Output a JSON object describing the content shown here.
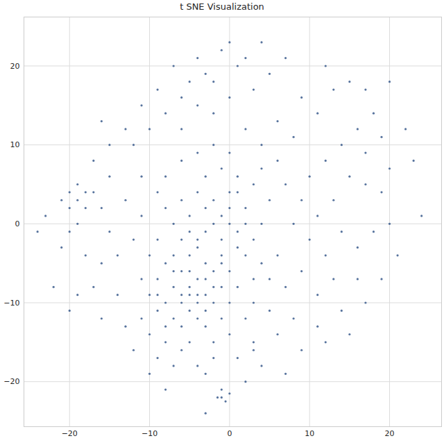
{
  "chart_data": {
    "type": "scatter",
    "title": "t SNE Visualization",
    "color": "#3a5a8c",
    "xlim": [
      -25.7,
      26.5
    ],
    "ylim": [
      -25.7,
      26.2
    ],
    "xticks": [
      -20,
      -10,
      0,
      10,
      20
    ],
    "yticks": [
      -20,
      -10,
      0,
      10,
      20
    ],
    "grid": true,
    "x": [
      -5,
      -4,
      -6,
      -3,
      -7,
      -5,
      -2,
      -4,
      -6,
      -3,
      -8,
      -1,
      -2,
      -5,
      -7,
      -9,
      -4,
      -1,
      0,
      -3,
      -6,
      -8,
      -1,
      0,
      1,
      -9,
      -10,
      -11,
      -2,
      -5,
      -3,
      -5,
      -1,
      1,
      -7,
      -9,
      -2,
      0,
      2,
      -4,
      -6,
      -8,
      3,
      2,
      4,
      1,
      -1,
      -3,
      3,
      5,
      -10,
      -11,
      -12,
      -13,
      -11,
      -8,
      -6,
      -4,
      -2,
      0,
      2,
      4,
      6,
      -2,
      0,
      -4,
      -6,
      -8,
      -10,
      -12,
      3,
      5,
      1,
      -1,
      -3,
      -5,
      7,
      9,
      11,
      8,
      13,
      15,
      17,
      18,
      16,
      14,
      12,
      10,
      17,
      19,
      20,
      19,
      17,
      15,
      13,
      11,
      9,
      7,
      6,
      8,
      10,
      12,
      14,
      16,
      18,
      20,
      21,
      19,
      16,
      13,
      11,
      9,
      7,
      6,
      5,
      8,
      11,
      14,
      17,
      15,
      12,
      9,
      6,
      3,
      1,
      4,
      7,
      2,
      -1,
      -1,
      -0.5,
      -1.5,
      0,
      -19,
      -20,
      -18,
      -19,
      -17,
      -20,
      -18,
      -21,
      -16,
      -19,
      -20,
      -21,
      -18,
      -16,
      -14,
      -15,
      -17,
      -19,
      -20,
      -16,
      -14,
      -13,
      -12,
      -9,
      -7,
      -6,
      -10,
      -8,
      -15,
      -17,
      -15,
      -13,
      -16,
      -11,
      -9,
      -6,
      -7,
      -4,
      -2,
      0,
      2,
      4,
      -23,
      -24,
      -22,
      24,
      23,
      22,
      20,
      12,
      -3,
      -4,
      3,
      0,
      -2,
      5,
      3,
      2,
      -8,
      -3,
      -5,
      -4,
      -6,
      -3,
      -4,
      -2,
      -5,
      -1,
      0,
      -2,
      -4,
      -6,
      2,
      -1,
      1,
      -7,
      -8,
      -9,
      -3,
      -7,
      0,
      -3,
      -5,
      1,
      4,
      -9,
      3,
      4,
      -10,
      -11
    ],
    "y": [
      -8,
      -9,
      -10,
      -7,
      -8,
      -11,
      -10,
      -12,
      -6,
      -5,
      -10,
      -8,
      -6,
      -4,
      -4,
      -7,
      -3,
      -4,
      -6,
      -13,
      -13,
      -13,
      -12,
      -10,
      -8,
      -11,
      -9,
      -12,
      -15,
      -15,
      -1,
      1,
      1,
      -1,
      0,
      -2,
      3,
      4,
      2,
      4,
      3,
      2,
      -2,
      -4,
      0,
      6,
      7,
      6,
      5,
      3,
      -4,
      1,
      -2,
      3,
      6,
      6,
      8,
      9,
      10,
      9,
      12,
      10,
      13,
      14,
      16,
      15,
      12,
      14,
      12,
      10,
      17,
      19,
      20,
      22,
      19,
      18,
      21,
      16,
      14,
      11,
      17,
      18,
      17,
      14,
      12,
      10,
      8,
      6,
      9,
      11,
      7,
      4,
      5,
      6,
      3,
      1,
      3,
      5,
      8,
      0,
      -2,
      -4,
      -1,
      -3,
      -1,
      0,
      -4,
      -7,
      -7,
      -7,
      -9,
      -6,
      -8,
      -4,
      -11,
      -12,
      -13,
      -11,
      -10,
      -14,
      -15,
      -16,
      -14,
      -15,
      -17,
      -18,
      -19,
      -20,
      -21,
      -22,
      -22.5,
      -22,
      -21.5,
      3,
      4,
      2,
      5,
      4,
      2,
      4,
      3,
      2,
      0,
      -1,
      -3,
      -4,
      -5,
      -4,
      -1,
      -8,
      -9,
      -11,
      -12,
      -9,
      -13,
      -16,
      -17,
      -18,
      -16,
      -19,
      -15,
      6,
      8,
      10,
      12,
      13,
      15,
      17,
      16,
      20,
      21,
      18,
      23,
      21,
      23,
      1,
      -1,
      -8,
      1,
      8,
      12,
      18,
      20,
      -19,
      -18,
      -16,
      -14,
      -17,
      -7,
      -10,
      -12,
      -21,
      -24,
      -9,
      -7,
      -9,
      -9,
      -10,
      -8,
      -6,
      -2,
      0,
      0,
      -2,
      -2,
      0,
      -5,
      -3,
      -6,
      -5,
      -9,
      -11,
      -12,
      2,
      2,
      -1,
      4,
      7,
      4,
      -7,
      -5,
      -14,
      -7
    ]
  }
}
